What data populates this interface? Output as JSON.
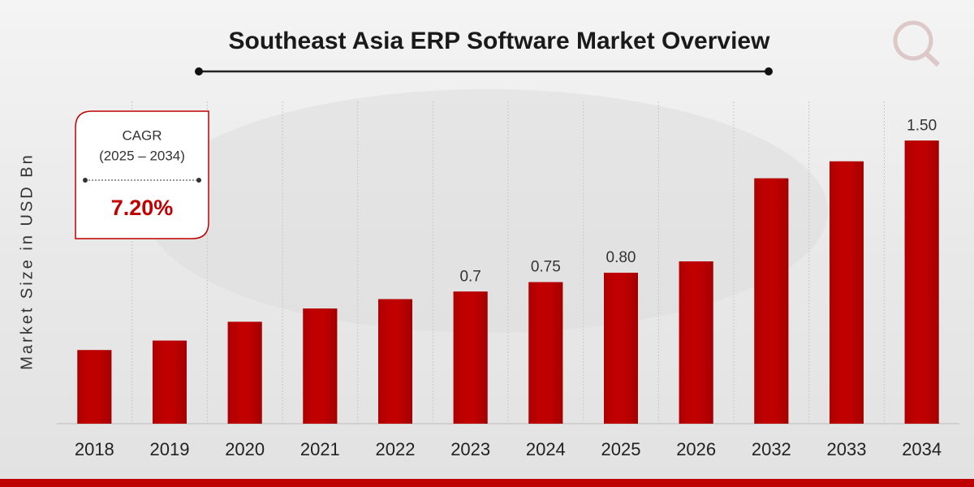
{
  "chart_data": {
    "type": "bar",
    "title": "Southeast Asia ERP Software Market Overview",
    "y_label": "Market Size in USD Bn",
    "categories": [
      "2018",
      "2019",
      "2020",
      "2021",
      "2022",
      "2023",
      "2024",
      "2025",
      "2026",
      "2032",
      "2033",
      "2034"
    ],
    "values": [
      0.39,
      0.44,
      0.54,
      0.61,
      0.66,
      0.7,
      0.75,
      0.8,
      0.86,
      1.3,
      1.39,
      1.5
    ],
    "value_labels": [
      null,
      null,
      null,
      null,
      null,
      "0.7",
      "0.75",
      "0.80",
      null,
      null,
      null,
      "1.50"
    ],
    "color": "#c00000",
    "ylim": [
      0,
      1.6
    ],
    "cagr": {
      "label": "CAGR",
      "period": "(2025 – 2034)",
      "value": "7.20%"
    }
  }
}
